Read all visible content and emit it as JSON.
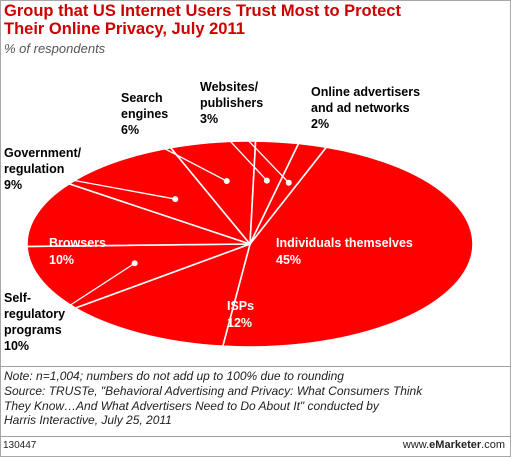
{
  "header": {
    "title_line1": "Group that US Internet Users Trust Most to Protect",
    "title_line2": "Their Online Privacy, July 2011",
    "subtitle": "% of respondents"
  },
  "chart_data": {
    "type": "pie",
    "title": "Group that US Internet Users Trust Most to Protect Their Online Privacy, July 2011",
    "subtitle": "% of respondents",
    "slices": [
      {
        "label": "Individuals themselves",
        "value": 45,
        "value_label": "45%"
      },
      {
        "label": "ISPs",
        "value": 12,
        "value_label": "12%"
      },
      {
        "label": "Self-regulatory programs",
        "value": 10,
        "value_label": "10%"
      },
      {
        "label": "Browsers",
        "value": 10,
        "value_label": "10%"
      },
      {
        "label": "Government/regulation",
        "value": 9,
        "value_label": "9%"
      },
      {
        "label": "Search engines",
        "value": 6,
        "value_label": "6%"
      },
      {
        "label": "Websites/publishers",
        "value": 3,
        "value_label": "3%"
      },
      {
        "label": "Online advertisers and ad networks",
        "value": 2,
        "value_label": "2%"
      }
    ],
    "colors": {
      "slice": "#ff0000",
      "edge": "#ffffff",
      "inside_label": "#ffffff",
      "outside_label": "#000000"
    }
  },
  "labels": {
    "individuals": {
      "line1": "Individuals themselves",
      "pct": "45%"
    },
    "isps": {
      "line1": "ISPs",
      "pct": "12%"
    },
    "browsers": {
      "line1": "Browsers",
      "pct": "10%"
    },
    "self_reg": {
      "line1": "Self-",
      "line2": "regulatory",
      "line3": "programs",
      "pct": "10%"
    },
    "government": {
      "line1": "Government/",
      "line2": "regulation",
      "pct": "9%"
    },
    "search": {
      "line1": "Search",
      "line2": "engines",
      "pct": "6%"
    },
    "websites": {
      "line1": "Websites/",
      "line2": "publishers",
      "pct": "3%"
    },
    "advertisers": {
      "line1": "Online advertisers",
      "line2": "and ad networks",
      "pct": "2%"
    }
  },
  "notes": {
    "line1": "Note: n=1,004; numbers do not add up to 100% due to rounding",
    "line2": "Source: TRUSTe, \"Behavioral Advertising and Privacy: What Consumers Think",
    "line3": "They Know…And What Advertisers Need to Do About It\" conducted by",
    "line4": "Harris Interactive, July 25, 2011"
  },
  "footer": {
    "chart_id": "130447",
    "brand_prefix": "www.",
    "brand_name": "eMarketer",
    "brand_suffix": ".com"
  }
}
